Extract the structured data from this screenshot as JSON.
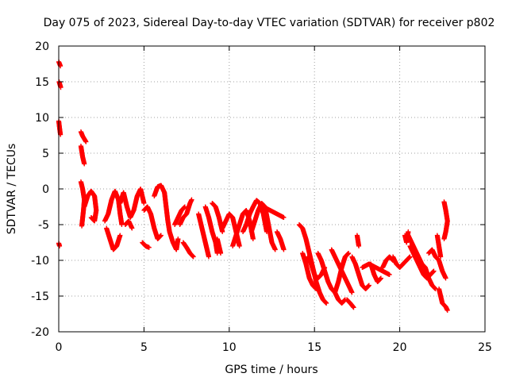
{
  "chart_data": {
    "type": "scatter",
    "title": "Day 075 of 2023, Sidereal Day-to-day VTEC variation (SDTVAR) for receiver p802",
    "xlabel": "GPS time / hours",
    "ylabel": "SDTVAR / TECUs",
    "xlim": [
      0,
      25
    ],
    "ylim": [
      -20,
      20
    ],
    "x_ticks": [
      0,
      5,
      10,
      15,
      20,
      25
    ],
    "y_ticks": [
      -20,
      -15,
      -10,
      -5,
      0,
      5,
      10,
      15,
      20
    ],
    "x_tick_labels": [
      "0",
      "5",
      "10",
      "15",
      "20",
      "25"
    ],
    "y_tick_labels": [
      "-20",
      "-15",
      "-10",
      "-5",
      "0",
      "5",
      "10",
      "15",
      "20"
    ],
    "grid": true,
    "marker": "+",
    "series_color": "#ff0000",
    "series": [
      {
        "name": "SDTVAR",
        "segments": [
          [
            [
              0.0,
              17.8
            ],
            [
              0.05,
              17.5
            ],
            [
              0.1,
              17.2
            ]
          ],
          [
            [
              0.02,
              15.0
            ],
            [
              0.07,
              14.6
            ],
            [
              0.12,
              14.2
            ]
          ],
          [
            [
              0.0,
              9.5
            ],
            [
              0.05,
              8.5
            ],
            [
              0.1,
              7.6
            ]
          ],
          [
            [
              0.0,
              -7.6
            ],
            [
              0.05,
              -8.0
            ]
          ],
          [
            [
              1.3,
              8.0
            ],
            [
              1.4,
              7.4
            ],
            [
              1.6,
              6.6
            ]
          ],
          [
            [
              1.3,
              6.0
            ],
            [
              1.4,
              4.5
            ],
            [
              1.5,
              3.5
            ]
          ],
          [
            [
              1.3,
              1.0
            ],
            [
              1.4,
              0.0
            ],
            [
              1.5,
              -1.5
            ],
            [
              1.45,
              -3.0
            ],
            [
              1.35,
              -5.2
            ]
          ],
          [
            [
              1.5,
              -2.5
            ],
            [
              1.7,
              -1.0
            ],
            [
              1.9,
              -0.3
            ],
            [
              2.1,
              -1.0
            ],
            [
              2.2,
              -3.0
            ],
            [
              2.1,
              -4.5
            ],
            [
              1.9,
              -4.0
            ]
          ],
          [
            [
              2.7,
              -4.5
            ],
            [
              2.9,
              -3.5
            ],
            [
              3.1,
              -1.5
            ],
            [
              3.3,
              -0.3
            ],
            [
              3.5,
              -1.5
            ],
            [
              3.6,
              -3.5
            ],
            [
              3.7,
              -5.0
            ]
          ],
          [
            [
              2.8,
              -5.5
            ],
            [
              3.0,
              -7.0
            ],
            [
              3.2,
              -8.5
            ],
            [
              3.4,
              -8.0
            ],
            [
              3.6,
              -6.5
            ]
          ],
          [
            [
              3.6,
              -2.0
            ],
            [
              3.8,
              -0.5
            ],
            [
              4.0,
              -2.5
            ],
            [
              4.2,
              -4.0
            ],
            [
              4.4,
              -3.0
            ],
            [
              4.6,
              -1.0
            ],
            [
              4.8,
              0.0
            ],
            [
              5.0,
              -2.0
            ]
          ],
          [
            [
              3.9,
              -5.0
            ],
            [
              4.1,
              -4.5
            ],
            [
              4.3,
              -5.5
            ]
          ],
          [
            [
              4.9,
              -7.5
            ],
            [
              5.1,
              -8.0
            ],
            [
              5.3,
              -8.2
            ]
          ],
          [
            [
              5.0,
              -3.0
            ],
            [
              5.2,
              -2.5
            ],
            [
              5.4,
              -3.5
            ],
            [
              5.6,
              -5.5
            ],
            [
              5.8,
              -7.0
            ],
            [
              6.0,
              -6.5
            ]
          ],
          [
            [
              5.6,
              -1.0
            ],
            [
              5.8,
              0.3
            ],
            [
              6.0,
              0.5
            ],
            [
              6.2,
              -0.5
            ],
            [
              6.3,
              -2.5
            ],
            [
              6.4,
              -4.5
            ],
            [
              6.5,
              -6.0
            ],
            [
              6.7,
              -7.5
            ],
            [
              6.9,
              -8.5
            ],
            [
              7.0,
              -7.0
            ]
          ],
          [
            [
              6.8,
              -5.0
            ],
            [
              7.0,
              -4.0
            ],
            [
              7.2,
              -3.0
            ],
            [
              7.4,
              -2.5
            ]
          ],
          [
            [
              7.1,
              -5.0
            ],
            [
              7.3,
              -4.0
            ],
            [
              7.5,
              -3.5
            ],
            [
              7.7,
              -2.0
            ],
            [
              7.8,
              -1.5
            ]
          ],
          [
            [
              7.3,
              -7.5
            ],
            [
              7.5,
              -8.2
            ],
            [
              7.7,
              -9.0
            ],
            [
              7.9,
              -9.5
            ]
          ],
          [
            [
              8.2,
              -3.5
            ],
            [
              8.4,
              -5.5
            ],
            [
              8.6,
              -7.5
            ],
            [
              8.8,
              -9.5
            ]
          ],
          [
            [
              8.6,
              -2.5
            ],
            [
              8.8,
              -4.0
            ],
            [
              9.0,
              -6.0
            ],
            [
              9.2,
              -7.5
            ],
            [
              9.3,
              -9.0
            ]
          ],
          [
            [
              9.0,
              -2.0
            ],
            [
              9.2,
              -2.5
            ],
            [
              9.4,
              -4.0
            ],
            [
              9.6,
              -6.0
            ]
          ],
          [
            [
              9.3,
              -7.0
            ],
            [
              9.5,
              -9.0
            ]
          ],
          [
            [
              9.6,
              -5.5
            ],
            [
              9.8,
              -4.5
            ],
            [
              10.0,
              -3.5
            ],
            [
              10.2,
              -4.0
            ],
            [
              10.4,
              -6.0
            ],
            [
              10.6,
              -8.0
            ]
          ],
          [
            [
              10.2,
              -8.0
            ],
            [
              10.4,
              -6.5
            ],
            [
              10.6,
              -5.0
            ],
            [
              10.8,
              -3.5
            ],
            [
              11.0,
              -3.0
            ],
            [
              11.2,
              -4.5
            ],
            [
              11.4,
              -7.0
            ]
          ],
          [
            [
              10.8,
              -6.0
            ],
            [
              11.0,
              -5.0
            ],
            [
              11.2,
              -3.5
            ],
            [
              11.4,
              -2.5
            ],
            [
              11.6,
              -1.6
            ],
            [
              11.8,
              -2.0
            ],
            [
              12.0,
              -3.5
            ],
            [
              12.2,
              -6.0
            ]
          ],
          [
            [
              11.3,
              -6.0
            ],
            [
              11.5,
              -4.5
            ],
            [
              11.7,
              -3.0
            ],
            [
              11.9,
              -2.0
            ],
            [
              12.1,
              -2.5
            ],
            [
              12.3,
              -5.0
            ],
            [
              12.5,
              -7.5
            ],
            [
              12.7,
              -8.5
            ]
          ],
          [
            [
              12.0,
              -2.5
            ],
            [
              12.4,
              -3.0
            ],
            [
              12.8,
              -3.5
            ],
            [
              13.2,
              -4.0
            ]
          ],
          [
            [
              12.8,
              -6.0
            ],
            [
              13.0,
              -7.0
            ],
            [
              13.2,
              -8.5
            ]
          ],
          [
            [
              14.1,
              -5.0
            ],
            [
              14.3,
              -5.5
            ],
            [
              14.5,
              -7.0
            ],
            [
              14.7,
              -9.0
            ],
            [
              14.9,
              -11.0
            ],
            [
              15.1,
              -13.0
            ],
            [
              15.3,
              -14.5
            ],
            [
              15.5,
              -15.5
            ],
            [
              15.7,
              -16.0
            ]
          ],
          [
            [
              14.3,
              -9.0
            ],
            [
              14.5,
              -10.5
            ],
            [
              14.7,
              -12.5
            ],
            [
              14.9,
              -13.5
            ],
            [
              15.1,
              -14.0
            ]
          ],
          [
            [
              14.6,
              -9.5
            ],
            [
              14.8,
              -10.5
            ],
            [
              15.0,
              -12.0
            ],
            [
              15.2,
              -12.5
            ],
            [
              15.4,
              -12.0
            ],
            [
              15.6,
              -11.0
            ]
          ],
          [
            [
              15.2,
              -9.0
            ],
            [
              15.4,
              -10.0
            ],
            [
              15.6,
              -11.5
            ],
            [
              15.8,
              -13.0
            ],
            [
              16.0,
              -14.0
            ],
            [
              16.2,
              -14.5
            ],
            [
              16.4,
              -13.0
            ],
            [
              16.6,
              -11.0
            ],
            [
              16.8,
              -9.5
            ],
            [
              17.0,
              -9.0
            ]
          ],
          [
            [
              16.0,
              -8.5
            ],
            [
              16.2,
              -9.5
            ],
            [
              16.4,
              -10.5
            ],
            [
              16.6,
              -11.5
            ],
            [
              16.8,
              -12.5
            ],
            [
              17.0,
              -13.5
            ],
            [
              17.2,
              -14.5
            ]
          ],
          [
            [
              16.2,
              -14.5
            ],
            [
              16.4,
              -15.5
            ],
            [
              16.6,
              -16.0
            ],
            [
              16.8,
              -15.5
            ]
          ],
          [
            [
              16.9,
              -15.5
            ],
            [
              17.1,
              -16.0
            ],
            [
              17.3,
              -16.6
            ]
          ],
          [
            [
              17.2,
              -9.5
            ],
            [
              17.4,
              -10.5
            ],
            [
              17.6,
              -12.0
            ],
            [
              17.8,
              -13.5
            ],
            [
              18.0,
              -14.0
            ],
            [
              18.2,
              -13.5
            ]
          ],
          [
            [
              17.5,
              -6.5
            ],
            [
              17.6,
              -8.0
            ]
          ],
          [
            [
              17.8,
              -11.0
            ],
            [
              18.2,
              -10.5
            ],
            [
              18.6,
              -11.0
            ],
            [
              19.0,
              -11.5
            ],
            [
              19.4,
              -12.0
            ]
          ],
          [
            [
              18.3,
              -10.5
            ],
            [
              18.5,
              -12.0
            ],
            [
              18.7,
              -13.0
            ],
            [
              18.9,
              -12.5
            ]
          ],
          [
            [
              19.0,
              -11.0
            ],
            [
              19.2,
              -10.0
            ],
            [
              19.4,
              -9.5
            ],
            [
              19.6,
              -10.0
            ]
          ],
          [
            [
              19.6,
              -9.5
            ],
            [
              19.8,
              -10.5
            ],
            [
              20.0,
              -11.0
            ],
            [
              20.2,
              -10.5
            ],
            [
              20.4,
              -10.0
            ],
            [
              20.6,
              -9.5
            ]
          ],
          [
            [
              20.3,
              -6.5
            ],
            [
              20.4,
              -7.5
            ],
            [
              20.5,
              -6.0
            ]
          ],
          [
            [
              20.6,
              -8.0
            ],
            [
              20.8,
              -9.0
            ],
            [
              21.0,
              -10.0
            ],
            [
              21.2,
              -11.0
            ],
            [
              21.4,
              -12.0
            ],
            [
              21.6,
              -12.5
            ],
            [
              21.8,
              -12.0
            ],
            [
              22.0,
              -11.5
            ]
          ],
          [
            [
              20.5,
              -6.5
            ],
            [
              20.7,
              -7.5
            ],
            [
              20.9,
              -8.5
            ],
            [
              21.1,
              -9.5
            ],
            [
              21.3,
              -10.5
            ],
            [
              21.5,
              -11.0
            ],
            [
              21.7,
              -12.5
            ],
            [
              21.9,
              -13.5
            ],
            [
              22.1,
              -14.0
            ]
          ],
          [
            [
              21.7,
              -9.0
            ],
            [
              21.9,
              -8.5
            ],
            [
              22.1,
              -9.5
            ],
            [
              22.3,
              -10.0
            ],
            [
              22.5,
              -11.5
            ],
            [
              22.7,
              -12.5
            ]
          ],
          [
            [
              22.2,
              -6.5
            ],
            [
              22.3,
              -8.0
            ],
            [
              22.4,
              -9.5
            ]
          ],
          [
            [
              22.3,
              -14.0
            ],
            [
              22.4,
              -15.0
            ],
            [
              22.5,
              -16.0
            ],
            [
              22.7,
              -16.5
            ],
            [
              22.8,
              -17.0
            ]
          ],
          [
            [
              22.6,
              -1.8
            ],
            [
              22.7,
              -3.0
            ],
            [
              22.8,
              -4.5
            ],
            [
              22.7,
              -6.0
            ],
            [
              22.6,
              -7.0
            ]
          ]
        ]
      }
    ]
  }
}
